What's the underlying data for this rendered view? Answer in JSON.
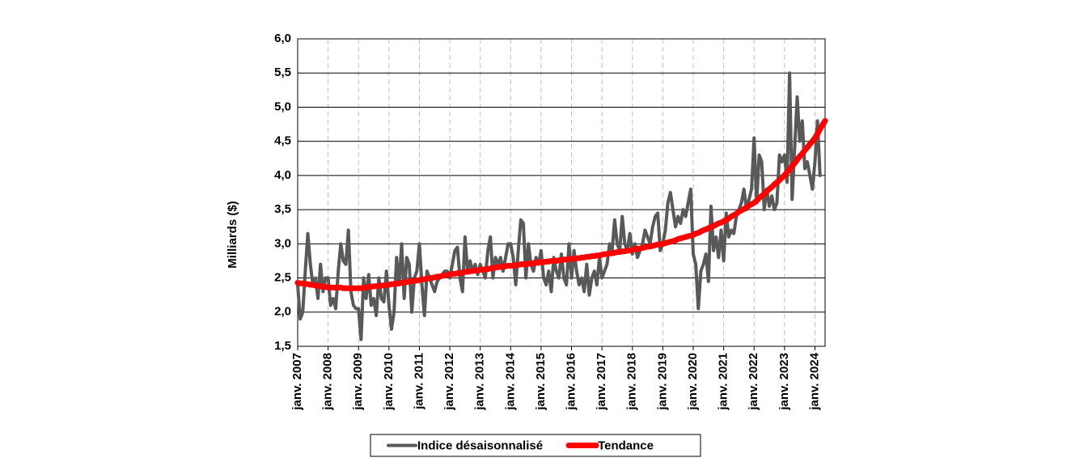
{
  "chart_data": {
    "type": "line",
    "ylabel": "Milliards ($)",
    "legend": "bottom",
    "grid": true,
    "ylim": [
      1.5,
      6.0
    ],
    "yticks": [
      {
        "value": 1.5,
        "label": "1,5"
      },
      {
        "value": 2.0,
        "label": "2,0"
      },
      {
        "value": 2.5,
        "label": "2,5"
      },
      {
        "value": 3.0,
        "label": "3,0"
      },
      {
        "value": 3.5,
        "label": "3,5"
      },
      {
        "value": 4.0,
        "label": "4,0"
      },
      {
        "value": 4.5,
        "label": "4,5"
      },
      {
        "value": 5.0,
        "label": "5,0"
      },
      {
        "value": 5.5,
        "label": "5,5"
      },
      {
        "value": 6.0,
        "label": "6,0"
      }
    ],
    "categories": [
      "janv. 2007",
      null,
      null,
      null,
      null,
      null,
      null,
      null,
      null,
      null,
      null,
      null,
      "janv. 2008",
      null,
      null,
      null,
      null,
      null,
      null,
      null,
      null,
      null,
      null,
      null,
      "janv. 2009",
      null,
      null,
      null,
      null,
      null,
      null,
      null,
      null,
      null,
      null,
      null,
      "janv. 2010",
      null,
      null,
      null,
      null,
      null,
      null,
      null,
      null,
      null,
      null,
      null,
      "janv. 2011",
      null,
      null,
      null,
      null,
      null,
      null,
      null,
      null,
      null,
      null,
      null,
      "janv. 2012",
      null,
      null,
      null,
      null,
      null,
      null,
      null,
      null,
      null,
      null,
      null,
      "janv. 2013",
      null,
      null,
      null,
      null,
      null,
      null,
      null,
      null,
      null,
      null,
      null,
      "janv. 2014",
      null,
      null,
      null,
      null,
      null,
      null,
      null,
      null,
      null,
      null,
      null,
      "janv. 2015",
      null,
      null,
      null,
      null,
      null,
      null,
      null,
      null,
      null,
      null,
      null,
      "janv. 2016",
      null,
      null,
      null,
      null,
      null,
      null,
      null,
      null,
      null,
      null,
      null,
      "janv. 2017",
      null,
      null,
      null,
      null,
      null,
      null,
      null,
      null,
      null,
      null,
      null,
      "janv. 2018",
      null,
      null,
      null,
      null,
      null,
      null,
      null,
      null,
      null,
      null,
      null,
      "janv. 2019",
      null,
      null,
      null,
      null,
      null,
      null,
      null,
      null,
      null,
      null,
      null,
      "janv. 2020",
      null,
      null,
      null,
      null,
      null,
      null,
      null,
      null,
      null,
      null,
      null,
      "janv. 2021",
      null,
      null,
      null,
      null,
      null,
      null,
      null,
      null,
      null,
      null,
      null,
      "janv. 2022",
      null,
      null,
      null,
      null,
      null,
      null,
      null,
      null,
      null,
      null,
      null,
      "janv. 2023",
      null,
      null,
      null,
      null,
      null,
      null,
      null,
      null,
      null,
      null,
      null,
      "janv. 2024",
      null,
      null,
      null,
      null
    ],
    "series": [
      {
        "name": "Indice désaisonnalisé",
        "color": "#595959",
        "width": 4,
        "values": [
          2.4,
          1.9,
          2.0,
          2.6,
          3.15,
          2.7,
          2.4,
          2.5,
          2.2,
          2.7,
          2.3,
          2.5,
          2.5,
          2.1,
          2.2,
          2.05,
          2.6,
          3.0,
          2.75,
          2.7,
          3.2,
          2.3,
          2.1,
          2.05,
          2.05,
          1.6,
          2.5,
          2.2,
          2.55,
          2.1,
          2.2,
          1.95,
          2.5,
          2.2,
          2.15,
          2.6,
          2.1,
          1.75,
          2.0,
          2.8,
          2.4,
          3.0,
          2.2,
          2.8,
          2.7,
          2.0,
          2.5,
          2.6,
          3.0,
          2.4,
          1.95,
          2.6,
          2.5,
          2.4,
          2.3,
          2.45,
          2.5,
          2.55,
          2.6,
          2.6,
          2.5,
          2.7,
          2.9,
          2.95,
          2.5,
          2.3,
          3.1,
          2.6,
          2.75,
          2.6,
          2.7,
          2.55,
          2.7,
          2.6,
          2.5,
          2.9,
          3.1,
          2.5,
          2.8,
          2.7,
          2.8,
          2.6,
          2.8,
          3.0,
          3.0,
          2.8,
          2.4,
          2.9,
          3.35,
          3.3,
          2.5,
          3.0,
          2.7,
          2.6,
          2.8,
          2.7,
          2.9,
          2.5,
          2.4,
          2.6,
          2.3,
          2.8,
          2.6,
          2.5,
          2.85,
          2.5,
          2.4,
          3.0,
          2.5,
          2.9,
          2.6,
          2.4,
          2.5,
          2.3,
          2.7,
          2.25,
          2.5,
          2.6,
          2.4,
          2.8,
          2.5,
          2.6,
          2.7,
          3.0,
          2.9,
          3.35,
          3.0,
          2.9,
          3.4,
          3.0,
          2.9,
          3.15,
          2.85,
          3.0,
          2.8,
          2.9,
          3.0,
          3.2,
          3.1,
          3.0,
          3.25,
          3.4,
          3.45,
          2.9,
          3.0,
          3.2,
          3.6,
          3.75,
          3.5,
          3.25,
          3.4,
          3.3,
          3.5,
          3.4,
          3.6,
          3.8,
          2.85,
          2.7,
          2.05,
          2.6,
          2.7,
          2.85,
          2.45,
          3.55,
          2.9,
          3.1,
          2.8,
          3.2,
          2.75,
          3.45,
          3.1,
          3.2,
          3.15,
          3.4,
          3.5,
          3.6,
          3.8,
          3.5,
          3.65,
          3.8,
          4.55,
          3.6,
          4.3,
          4.2,
          3.5,
          3.8,
          3.55,
          3.7,
          3.5,
          3.6,
          4.3,
          4.2,
          4.3,
          3.9,
          5.5,
          3.65,
          4.4,
          5.15,
          4.5,
          4.8,
          4.1,
          4.2,
          4.0,
          3.8,
          4.2,
          4.8,
          4.0,
          null,
          null
        ]
      },
      {
        "name": "Tendance",
        "color": "#ff0000",
        "width": 7,
        "values": [
          2.43,
          2.42,
          2.42,
          2.41,
          2.41,
          2.4,
          2.4,
          2.39,
          2.38,
          2.38,
          2.37,
          2.37,
          2.36,
          2.36,
          2.36,
          2.36,
          2.36,
          2.36,
          2.35,
          2.35,
          2.35,
          2.35,
          2.35,
          2.35,
          2.35,
          2.35,
          2.36,
          2.36,
          2.37,
          2.37,
          2.38,
          2.38,
          2.38,
          2.39,
          2.39,
          2.4,
          2.4,
          2.41,
          2.41,
          2.42,
          2.42,
          2.43,
          2.44,
          2.44,
          2.45,
          2.45,
          2.46,
          2.46,
          2.47,
          2.48,
          2.48,
          2.49,
          2.5,
          2.5,
          2.51,
          2.52,
          2.52,
          2.53,
          2.54,
          2.54,
          2.55,
          2.56,
          2.56,
          2.57,
          2.57,
          2.58,
          2.59,
          2.59,
          2.6,
          2.6,
          2.61,
          2.61,
          2.62,
          2.62,
          2.63,
          2.63,
          2.64,
          2.65,
          2.65,
          2.66,
          2.66,
          2.67,
          2.67,
          2.68,
          2.68,
          2.68,
          2.69,
          2.69,
          2.7,
          2.7,
          2.7,
          2.71,
          2.71,
          2.72,
          2.72,
          2.73,
          2.73,
          2.73,
          2.74,
          2.74,
          2.75,
          2.75,
          2.75,
          2.76,
          2.76,
          2.77,
          2.77,
          2.78,
          2.78,
          2.78,
          2.79,
          2.79,
          2.8,
          2.8,
          2.81,
          2.81,
          2.82,
          2.82,
          2.83,
          2.83,
          2.84,
          2.85,
          2.85,
          2.86,
          2.86,
          2.87,
          2.88,
          2.88,
          2.89,
          2.89,
          2.9,
          2.9,
          2.91,
          2.92,
          2.93,
          2.93,
          2.94,
          2.95,
          2.96,
          2.96,
          2.97,
          2.98,
          2.99,
          2.99,
          3.0,
          3.01,
          3.02,
          3.03,
          3.04,
          3.05,
          3.07,
          3.08,
          3.09,
          3.1,
          3.11,
          3.12,
          3.13,
          3.15,
          3.16,
          3.18,
          3.2,
          3.21,
          3.23,
          3.25,
          3.26,
          3.28,
          3.3,
          3.31,
          3.33,
          3.35,
          3.37,
          3.4,
          3.42,
          3.44,
          3.47,
          3.49,
          3.51,
          3.53,
          3.56,
          3.58,
          3.6,
          3.63,
          3.67,
          3.7,
          3.73,
          3.77,
          3.8,
          3.83,
          3.87,
          3.9,
          3.93,
          3.97,
          4.0,
          4.05,
          4.09,
          4.14,
          4.18,
          4.23,
          4.28,
          4.32,
          4.37,
          4.41,
          4.46,
          4.5,
          4.55,
          4.61,
          4.68,
          4.74,
          4.8
        ]
      }
    ]
  }
}
